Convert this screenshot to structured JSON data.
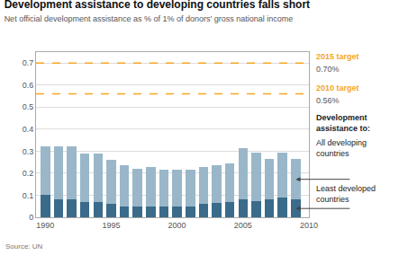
{
  "chart_data": {
    "type": "bar",
    "title": "Development assistance to developing countries falls short",
    "subtitle": "Net official development assistance as % of 1% of donors' gross national income",
    "source": "Source: UN",
    "x": [
      1990,
      1991,
      1992,
      1993,
      1994,
      1995,
      1996,
      1997,
      1998,
      1999,
      2000,
      2001,
      2002,
      2003,
      2004,
      2005,
      2006,
      2007,
      2008,
      2009
    ],
    "series": [
      {
        "name": "Least developed\ncountries",
        "color": "#3a6b8a",
        "values": [
          0.1,
          0.08,
          0.08,
          0.07,
          0.07,
          0.06,
          0.05,
          0.05,
          0.05,
          0.05,
          0.05,
          0.05,
          0.06,
          0.065,
          0.07,
          0.08,
          0.075,
          0.08,
          0.09,
          0.08
        ]
      },
      {
        "name": "All developing\ncountries",
        "color": "#9ab7c9",
        "values": [
          0.22,
          0.24,
          0.24,
          0.22,
          0.22,
          0.2,
          0.185,
          0.17,
          0.18,
          0.165,
          0.165,
          0.165,
          0.17,
          0.17,
          0.175,
          0.235,
          0.22,
          0.185,
          0.205,
          0.185
        ]
      }
    ],
    "stacked": true,
    "legend_title": "Development\nassistance to:",
    "reference_lines": [
      {
        "value": 0.7,
        "label": "2015 target",
        "value_label": "0.70%",
        "color": "#f5a623",
        "line_style": "dashed"
      },
      {
        "value": 0.56,
        "label": "2010 target",
        "value_label": "0.56%",
        "color": "#f5a623",
        "line_style": "dashed"
      }
    ],
    "xlim": [
      1989.3,
      2010.0
    ],
    "xticks": [
      1990,
      1995,
      2000,
      2005,
      2010
    ],
    "ylim": [
      0,
      0.75
    ],
    "yticks": [
      0,
      0.1,
      0.2,
      0.3,
      0.4,
      0.5,
      0.6,
      0.7
    ],
    "grid": true
  }
}
